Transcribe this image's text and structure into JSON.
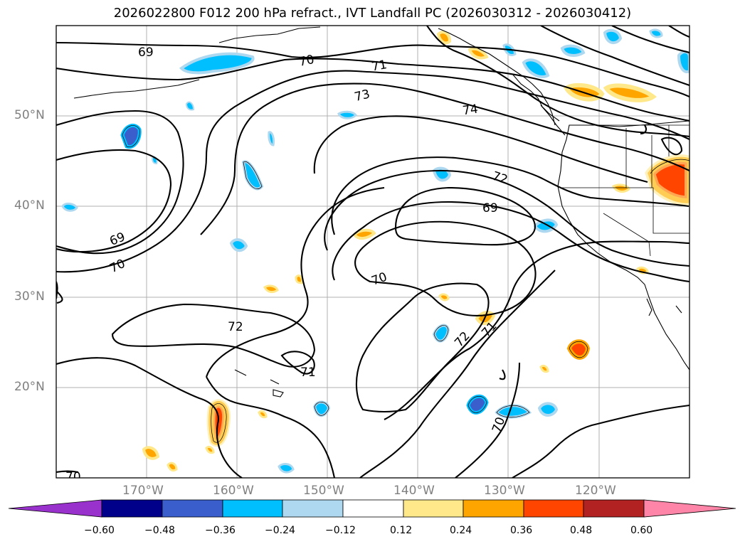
{
  "title": "2026022800 F012 200 hPa refract., IVT Landfall PC (2026030312 - 2026030412)",
  "map": {
    "lat_labels": [
      "50°N",
      "40°N",
      "30°N",
      "20°N"
    ],
    "lon_labels": [
      "170°W",
      "160°W",
      "150°W",
      "140°W",
      "130°W",
      "120°W"
    ],
    "contour_labels": [
      "69",
      "70",
      "71",
      "73",
      "74",
      "72",
      "69",
      "69",
      "70",
      "70",
      "72",
      "71",
      "72",
      "71",
      "70",
      "70"
    ]
  },
  "colorbar": {
    "ticks": [
      "−0.60",
      "−0.48",
      "−0.36",
      "−0.24",
      "−0.12",
      "0.12",
      "0.24",
      "0.36",
      "0.48",
      "0.60"
    ],
    "colors": [
      "#9932cc",
      "#00008b",
      "#3a5fcd",
      "#00bfff",
      "#add8f0",
      "#ffffff",
      "#ffe88a",
      "#ffa500",
      "#ff4500",
      "#b22222",
      "#ff85a8"
    ]
  }
}
